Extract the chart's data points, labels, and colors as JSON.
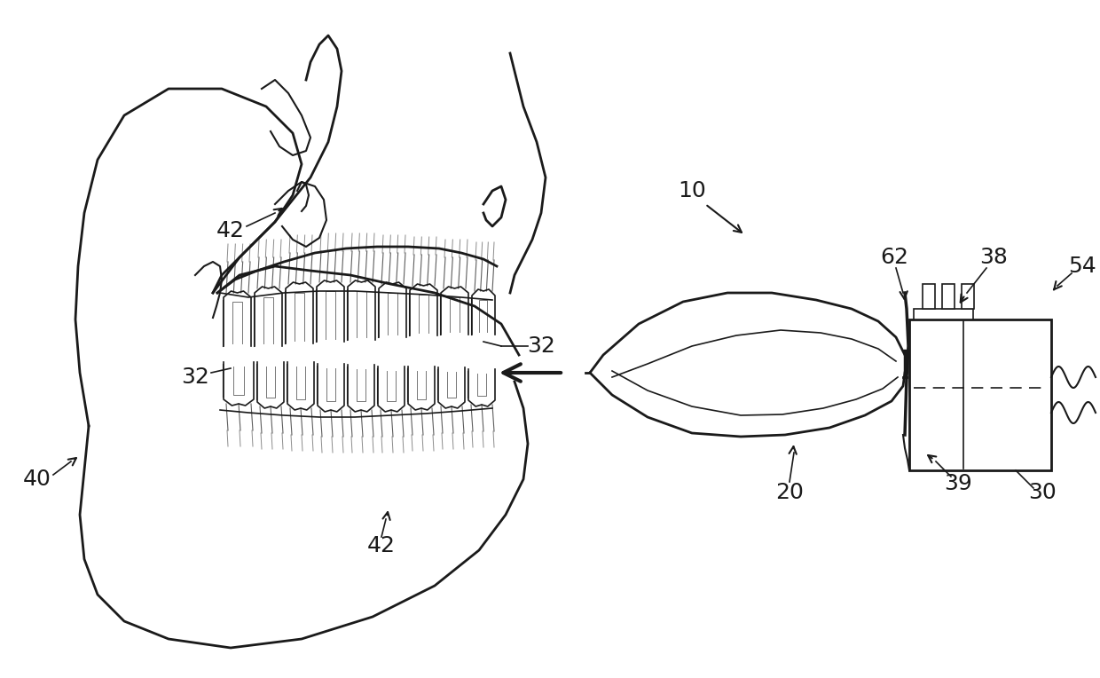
{
  "background_color": "#ffffff",
  "line_color": "#1a1a1a",
  "label_color": "#1a1a1a",
  "label_fontsize": 18,
  "fig_width": 12.4,
  "fig_height": 7.64
}
